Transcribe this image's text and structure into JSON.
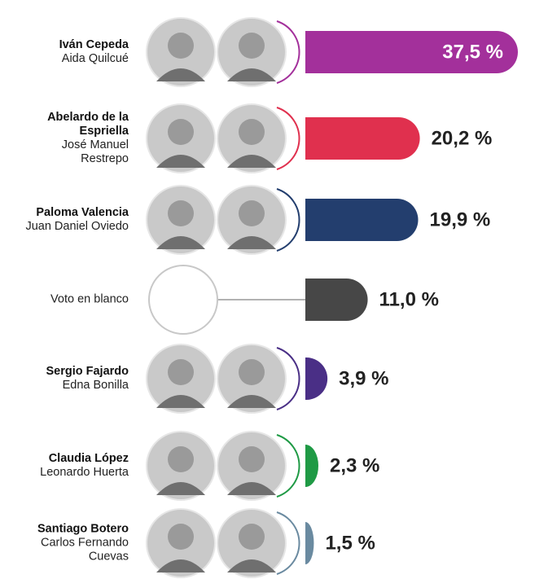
{
  "chart_data": {
    "type": "bar",
    "orientation": "horizontal",
    "categories": [
      "Iván Cepeda",
      "Abelardo de la Espriella",
      "Paloma Valencia",
      "Voto en blanco",
      "Sergio Fajardo",
      "Claudia López",
      "Santiago Botero"
    ],
    "subcategories": [
      "Aida Quilcué",
      "José Manuel Restrepo",
      "Juan Daniel Oviedo",
      null,
      "Edna Bonilla",
      "Leonardo Huerta",
      "Carlos Fernando Cuevas"
    ],
    "values": [
      37.5,
      20.2,
      19.9,
      11.0,
      3.9,
      2.3,
      1.5
    ],
    "value_labels": [
      "37,5 %",
      "20,2 %",
      "19,9 %",
      "11,0 %",
      "3,9 %",
      "2,3 %",
      "1,5 %"
    ],
    "colors": [
      "#a3309b",
      "#e0304e",
      "#233e6e",
      "#474747",
      "#4a2f86",
      "#1f9a45",
      "#6a8aa0"
    ]
  }
}
